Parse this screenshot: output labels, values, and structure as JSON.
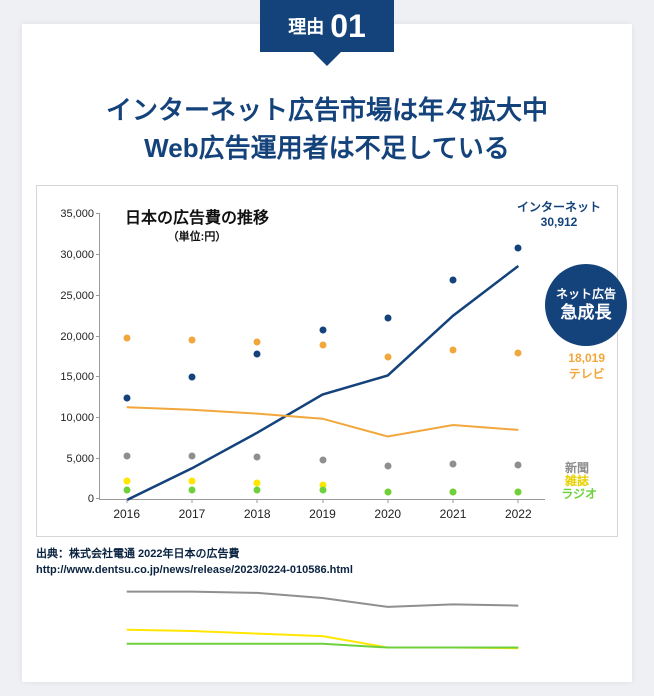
{
  "badge": {
    "label": "理由",
    "number": "01"
  },
  "headline_line1": "インターネット広告市場は年々拡大中",
  "headline_line2": "Web広告運用者は不足している",
  "chart": {
    "type": "line",
    "title": "日本の広告費の推移",
    "unit": "（単位:円）",
    "x_categories": [
      "2016",
      "2017",
      "2018",
      "2019",
      "2020",
      "2021",
      "2022"
    ],
    "ylim": [
      0,
      35000
    ],
    "ytick_step": 5000,
    "yticks": [
      "0",
      "5,000",
      "10,000",
      "15,000",
      "20,000",
      "25,000",
      "30,000",
      "35,000"
    ],
    "axis_color": "#9a9a9a",
    "background_color": "#ffffff",
    "label_fontsize": 11,
    "title_fontsize": 16,
    "marker_size": 7,
    "line_width": 2,
    "series": [
      {
        "name": "インターネット",
        "color": "#14427b",
        "values": [
          12500,
          15000,
          17800,
          20800,
          22300,
          27000,
          30912
        ],
        "width": 2.5
      },
      {
        "name": "テレビ",
        "color": "#f2a73c",
        "values": [
          19800,
          19600,
          19300,
          18900,
          17500,
          18400,
          18019
        ],
        "width": 2
      },
      {
        "name": "新聞",
        "color": "#8f8f8f",
        "values": [
          5300,
          5300,
          5200,
          4800,
          4100,
          4300,
          4200
        ],
        "width": 2
      },
      {
        "name": "雑誌",
        "color": "#ffe600",
        "values": [
          2300,
          2200,
          2000,
          1800,
          900,
          900,
          850
        ],
        "width": 2
      },
      {
        "name": "ラジオ",
        "color": "#6dd13e",
        "values": [
          1200,
          1200,
          1200,
          1200,
          900,
          900,
          900
        ],
        "width": 2
      }
    ],
    "callouts": {
      "internet_label": "インターネット",
      "internet_value": "30,912",
      "internet_color": "#14427b",
      "tv_value": "18,019",
      "tv_label": "テレビ",
      "tv_color": "#f2a73c",
      "shinbun_label": "新聞",
      "shinbun_color": "#8f8f8f",
      "zasshi_label": "雑誌",
      "zasshi_color": "#ffe600",
      "radio_label": "ラジオ",
      "radio_color": "#6dd13e"
    },
    "bubble": {
      "line1": "ネット広告",
      "line2": "急成長",
      "bg": "#14427b"
    }
  },
  "source_line1": "出典：株式会社電通 2022年日本の広告費",
  "source_line2": "http://www.dentsu.co.jp/news/release/2023/0224-010586.html"
}
